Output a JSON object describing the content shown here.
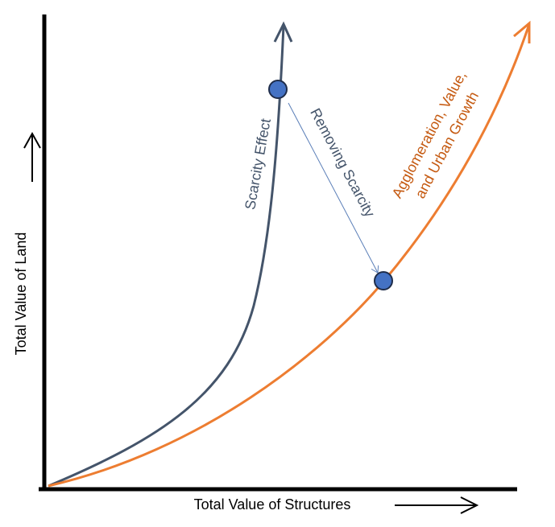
{
  "axes": {
    "x_label": "Total Value of Structures",
    "y_label": "Total Value of Land"
  },
  "curves": [
    {
      "label_lines": [
        "Scarcity Effect"
      ]
    },
    {
      "label_lines": [
        "Agglomeration, Value,",
        "and Urban Growth"
      ]
    }
  ],
  "transition": {
    "label": "Removing Scarcity"
  }
}
